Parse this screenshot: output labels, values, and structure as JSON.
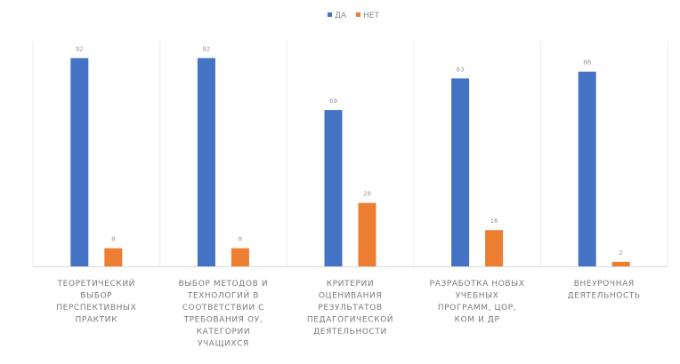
{
  "chart_data": {
    "type": "bar",
    "categories": [
      [
        "ТЕОРЕТИЧЕСКИЙ",
        "ВЫБОР",
        "ПЕРСПЕКТИВНЫХ",
        "ПРАКТИК"
      ],
      [
        "ВЫБОР МЕТОДОВ И",
        "ТЕХНОЛОГИЙ В",
        "СООТВЕТСТВИИ С",
        "ТРЕБОВАНИЯ ОУ,",
        "КАТЕГОРИИ",
        "УЧАЩИХСЯ"
      ],
      [
        "КРИТЕРИИ",
        "ОЦЕНИВАНИЯ",
        "РЕЗУЛЬТАТОВ",
        "ПЕДАГОГИЧЕСКОЙ",
        "ДЕЯТЕЛЬНОСТИ"
      ],
      [
        "РАЗРАБОТКА НОВЫХ",
        "УЧЕБНЫХ",
        "ПРОГРАММ, ЦОР,",
        "КОМ И ДР"
      ],
      [
        "ВНЕУРОЧНАЯ",
        "ДЕЯТЕЛЬНОСТЬ"
      ]
    ],
    "series": [
      {
        "name": "ДА",
        "color": "#4472C4",
        "values": [
          92,
          92,
          69,
          83,
          86
        ]
      },
      {
        "name": "НЕТ",
        "color": "#ED7D31",
        "values": [
          8,
          8,
          28,
          16,
          2
        ]
      }
    ],
    "ylim": [
      0,
      100
    ],
    "legend_position": "top-center",
    "grid": false
  }
}
